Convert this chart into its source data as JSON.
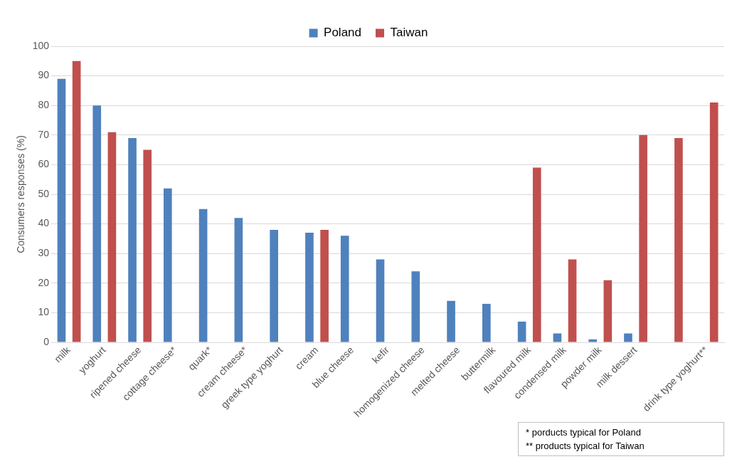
{
  "chart_data": {
    "type": "bar",
    "ylabel": "Consumers responses (%)",
    "categories": [
      "milk",
      "yoghurt",
      "ripened cheese",
      "cottage cheese*",
      "quark*",
      "cream cheese*",
      "greek type yoghurt",
      "cream",
      "blue cheese",
      "kefir",
      "homogenized cheese",
      "melted cheese",
      "buttermilk",
      "flavoured milk",
      "condensed milk",
      "powder milk",
      "milk dessert",
      null,
      "drink type yoghurt**"
    ],
    "series": [
      {
        "name": "Poland",
        "color": "#4f81bd",
        "values": [
          89,
          80,
          69,
          52,
          45,
          42,
          38,
          37,
          36,
          28,
          24,
          14,
          13,
          7,
          3,
          1,
          3,
          null,
          null
        ]
      },
      {
        "name": "Taiwan",
        "color": "#c0504d",
        "values": [
          95,
          71,
          65,
          null,
          null,
          null,
          null,
          38,
          null,
          null,
          null,
          null,
          null,
          59,
          28,
          21,
          70,
          69,
          81
        ]
      }
    ],
    "ylim": [
      0,
      100
    ],
    "yticks": [
      0,
      10,
      20,
      30,
      40,
      50,
      60,
      70,
      80,
      90,
      100
    ],
    "grid": "y",
    "legend": "top",
    "annotations": [
      "* porducts typical for Poland",
      "** products typical for Taiwan"
    ]
  }
}
